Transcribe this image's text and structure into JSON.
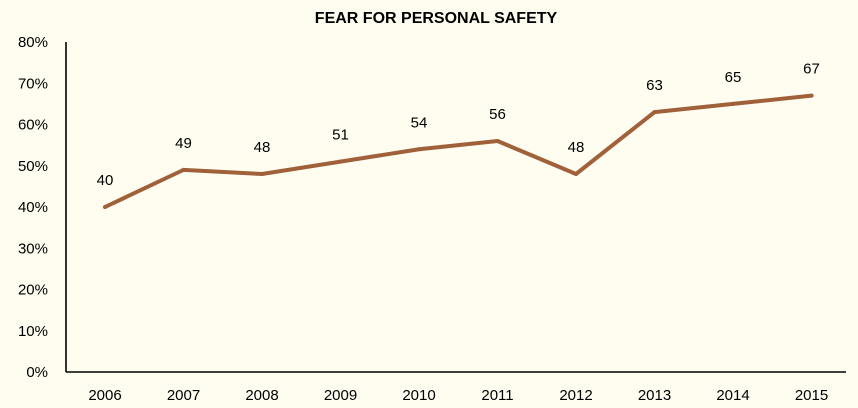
{
  "colors": {
    "background": "#FEFDF0",
    "line": "#A0613A",
    "axis": "#000000",
    "text": "#000000"
  },
  "chart_data": {
    "type": "line",
    "title": "FEAR FOR PERSONAL SAFETY",
    "xlabel": "",
    "ylabel": "",
    "categories": [
      "2006",
      "2007",
      "2008",
      "2009",
      "2010",
      "2011",
      "2012",
      "2013",
      "2014",
      "2015"
    ],
    "series": [
      {
        "values": [
          40,
          49,
          48,
          51,
          54,
          56,
          48,
          63,
          65,
          67
        ],
        "labels": [
          "40",
          "49",
          "48",
          "51",
          "54",
          "56",
          "48",
          "63",
          "65",
          "67"
        ]
      }
    ],
    "ylim": [
      0,
      80
    ],
    "yticks": [
      0,
      10,
      20,
      30,
      40,
      50,
      60,
      70,
      80
    ],
    "ytick_labels": [
      "0%",
      "10%",
      "20%",
      "30%",
      "40%",
      "50%",
      "60%",
      "70%",
      "80%"
    ],
    "grid": false,
    "legend": "none"
  }
}
